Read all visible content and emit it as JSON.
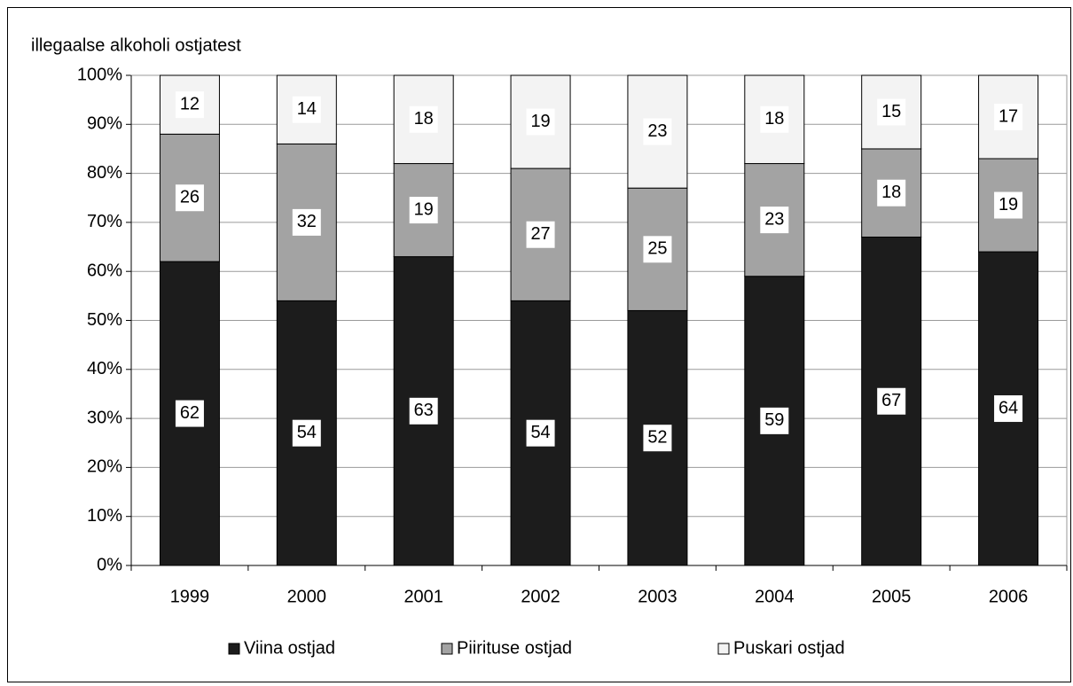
{
  "chart_data": {
    "type": "stacked_bar",
    "y_label": "illegaalse alkoholi ostjatest",
    "categories": [
      "1999",
      "2000",
      "2001",
      "2002",
      "2003",
      "2004",
      "2005",
      "2006"
    ],
    "series": [
      {
        "name": "Viina ostjad",
        "color": "#1c1c1c",
        "values": [
          62,
          54,
          63,
          54,
          52,
          59,
          67,
          64
        ]
      },
      {
        "name": "Piirituse ostjad",
        "color": "#a3a3a3",
        "values": [
          26,
          32,
          19,
          27,
          25,
          23,
          18,
          19
        ]
      },
      {
        "name": "Puskari ostjad",
        "color": "#f3f3f3",
        "values": [
          12,
          14,
          18,
          19,
          23,
          18,
          15,
          17
        ]
      }
    ],
    "ylim": [
      0,
      100
    ],
    "yticks": [
      {
        "value": 0,
        "label": "0%"
      },
      {
        "value": 10,
        "label": "10%"
      },
      {
        "value": 20,
        "label": "20%"
      },
      {
        "value": 30,
        "label": "30%"
      },
      {
        "value": 40,
        "label": "40%"
      },
      {
        "value": 50,
        "label": "50%"
      },
      {
        "value": 60,
        "label": "60%"
      },
      {
        "value": 70,
        "label": "70%"
      },
      {
        "value": 80,
        "label": "80%"
      },
      {
        "value": 90,
        "label": "90%"
      },
      {
        "value": 100,
        "label": "100%"
      }
    ],
    "grid": true,
    "legend": "bottom"
  }
}
